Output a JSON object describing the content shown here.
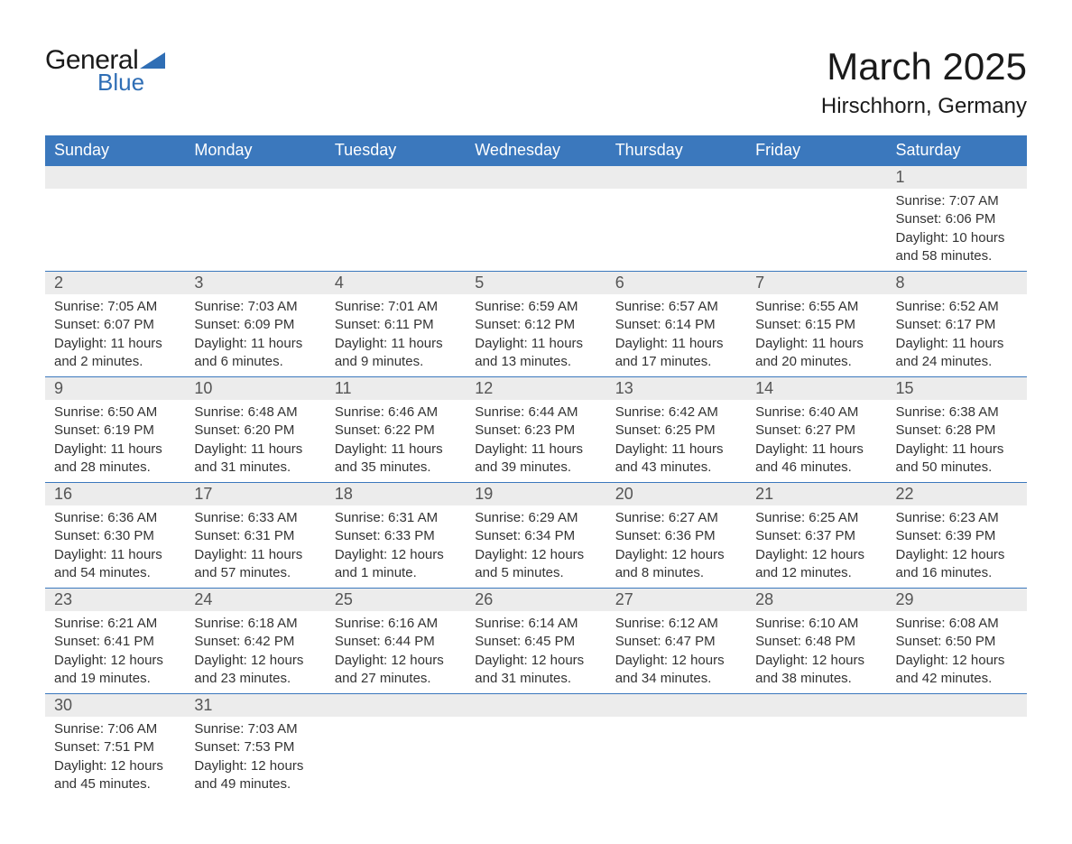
{
  "brand": {
    "word1": "General",
    "word2": "Blue",
    "triangle_color": "#2f6eb5"
  },
  "title": "March 2025",
  "location": "Hirschhorn, Germany",
  "colors": {
    "header_bg": "#3b78bd",
    "header_text": "#ffffff",
    "daynum_bg": "#ececec",
    "daynum_text": "#555555",
    "body_text": "#333333",
    "rule": "#3b78bd"
  },
  "day_headers": [
    "Sunday",
    "Monday",
    "Tuesday",
    "Wednesday",
    "Thursday",
    "Friday",
    "Saturday"
  ],
  "weeks": [
    [
      null,
      null,
      null,
      null,
      null,
      null,
      {
        "n": "1",
        "sunrise": "Sunrise: 7:07 AM",
        "sunset": "Sunset: 6:06 PM",
        "day1": "Daylight: 10 hours",
        "day2": "and 58 minutes."
      }
    ],
    [
      {
        "n": "2",
        "sunrise": "Sunrise: 7:05 AM",
        "sunset": "Sunset: 6:07 PM",
        "day1": "Daylight: 11 hours",
        "day2": "and 2 minutes."
      },
      {
        "n": "3",
        "sunrise": "Sunrise: 7:03 AM",
        "sunset": "Sunset: 6:09 PM",
        "day1": "Daylight: 11 hours",
        "day2": "and 6 minutes."
      },
      {
        "n": "4",
        "sunrise": "Sunrise: 7:01 AM",
        "sunset": "Sunset: 6:11 PM",
        "day1": "Daylight: 11 hours",
        "day2": "and 9 minutes."
      },
      {
        "n": "5",
        "sunrise": "Sunrise: 6:59 AM",
        "sunset": "Sunset: 6:12 PM",
        "day1": "Daylight: 11 hours",
        "day2": "and 13 minutes."
      },
      {
        "n": "6",
        "sunrise": "Sunrise: 6:57 AM",
        "sunset": "Sunset: 6:14 PM",
        "day1": "Daylight: 11 hours",
        "day2": "and 17 minutes."
      },
      {
        "n": "7",
        "sunrise": "Sunrise: 6:55 AM",
        "sunset": "Sunset: 6:15 PM",
        "day1": "Daylight: 11 hours",
        "day2": "and 20 minutes."
      },
      {
        "n": "8",
        "sunrise": "Sunrise: 6:52 AM",
        "sunset": "Sunset: 6:17 PM",
        "day1": "Daylight: 11 hours",
        "day2": "and 24 minutes."
      }
    ],
    [
      {
        "n": "9",
        "sunrise": "Sunrise: 6:50 AM",
        "sunset": "Sunset: 6:19 PM",
        "day1": "Daylight: 11 hours",
        "day2": "and 28 minutes."
      },
      {
        "n": "10",
        "sunrise": "Sunrise: 6:48 AM",
        "sunset": "Sunset: 6:20 PM",
        "day1": "Daylight: 11 hours",
        "day2": "and 31 minutes."
      },
      {
        "n": "11",
        "sunrise": "Sunrise: 6:46 AM",
        "sunset": "Sunset: 6:22 PM",
        "day1": "Daylight: 11 hours",
        "day2": "and 35 minutes."
      },
      {
        "n": "12",
        "sunrise": "Sunrise: 6:44 AM",
        "sunset": "Sunset: 6:23 PM",
        "day1": "Daylight: 11 hours",
        "day2": "and 39 minutes."
      },
      {
        "n": "13",
        "sunrise": "Sunrise: 6:42 AM",
        "sunset": "Sunset: 6:25 PM",
        "day1": "Daylight: 11 hours",
        "day2": "and 43 minutes."
      },
      {
        "n": "14",
        "sunrise": "Sunrise: 6:40 AM",
        "sunset": "Sunset: 6:27 PM",
        "day1": "Daylight: 11 hours",
        "day2": "and 46 minutes."
      },
      {
        "n": "15",
        "sunrise": "Sunrise: 6:38 AM",
        "sunset": "Sunset: 6:28 PM",
        "day1": "Daylight: 11 hours",
        "day2": "and 50 minutes."
      }
    ],
    [
      {
        "n": "16",
        "sunrise": "Sunrise: 6:36 AM",
        "sunset": "Sunset: 6:30 PM",
        "day1": "Daylight: 11 hours",
        "day2": "and 54 minutes."
      },
      {
        "n": "17",
        "sunrise": "Sunrise: 6:33 AM",
        "sunset": "Sunset: 6:31 PM",
        "day1": "Daylight: 11 hours",
        "day2": "and 57 minutes."
      },
      {
        "n": "18",
        "sunrise": "Sunrise: 6:31 AM",
        "sunset": "Sunset: 6:33 PM",
        "day1": "Daylight: 12 hours",
        "day2": "and 1 minute."
      },
      {
        "n": "19",
        "sunrise": "Sunrise: 6:29 AM",
        "sunset": "Sunset: 6:34 PM",
        "day1": "Daylight: 12 hours",
        "day2": "and 5 minutes."
      },
      {
        "n": "20",
        "sunrise": "Sunrise: 6:27 AM",
        "sunset": "Sunset: 6:36 PM",
        "day1": "Daylight: 12 hours",
        "day2": "and 8 minutes."
      },
      {
        "n": "21",
        "sunrise": "Sunrise: 6:25 AM",
        "sunset": "Sunset: 6:37 PM",
        "day1": "Daylight: 12 hours",
        "day2": "and 12 minutes."
      },
      {
        "n": "22",
        "sunrise": "Sunrise: 6:23 AM",
        "sunset": "Sunset: 6:39 PM",
        "day1": "Daylight: 12 hours",
        "day2": "and 16 minutes."
      }
    ],
    [
      {
        "n": "23",
        "sunrise": "Sunrise: 6:21 AM",
        "sunset": "Sunset: 6:41 PM",
        "day1": "Daylight: 12 hours",
        "day2": "and 19 minutes."
      },
      {
        "n": "24",
        "sunrise": "Sunrise: 6:18 AM",
        "sunset": "Sunset: 6:42 PM",
        "day1": "Daylight: 12 hours",
        "day2": "and 23 minutes."
      },
      {
        "n": "25",
        "sunrise": "Sunrise: 6:16 AM",
        "sunset": "Sunset: 6:44 PM",
        "day1": "Daylight: 12 hours",
        "day2": "and 27 minutes."
      },
      {
        "n": "26",
        "sunrise": "Sunrise: 6:14 AM",
        "sunset": "Sunset: 6:45 PM",
        "day1": "Daylight: 12 hours",
        "day2": "and 31 minutes."
      },
      {
        "n": "27",
        "sunrise": "Sunrise: 6:12 AM",
        "sunset": "Sunset: 6:47 PM",
        "day1": "Daylight: 12 hours",
        "day2": "and 34 minutes."
      },
      {
        "n": "28",
        "sunrise": "Sunrise: 6:10 AM",
        "sunset": "Sunset: 6:48 PM",
        "day1": "Daylight: 12 hours",
        "day2": "and 38 minutes."
      },
      {
        "n": "29",
        "sunrise": "Sunrise: 6:08 AM",
        "sunset": "Sunset: 6:50 PM",
        "day1": "Daylight: 12 hours",
        "day2": "and 42 minutes."
      }
    ],
    [
      {
        "n": "30",
        "sunrise": "Sunrise: 7:06 AM",
        "sunset": "Sunset: 7:51 PM",
        "day1": "Daylight: 12 hours",
        "day2": "and 45 minutes."
      },
      {
        "n": "31",
        "sunrise": "Sunrise: 7:03 AM",
        "sunset": "Sunset: 7:53 PM",
        "day1": "Daylight: 12 hours",
        "day2": "and 49 minutes."
      },
      null,
      null,
      null,
      null,
      null
    ]
  ]
}
